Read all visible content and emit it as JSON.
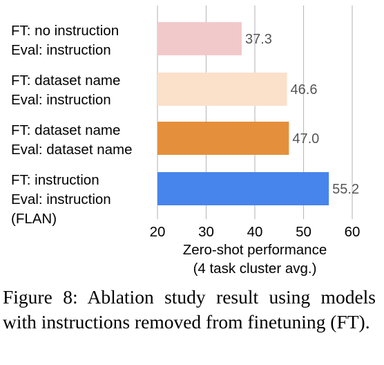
{
  "chart_data": {
    "type": "bar",
    "orientation": "horizontal",
    "categories": [
      [
        "FT: no instruction",
        "Eval: instruction"
      ],
      [
        "FT: dataset name",
        "Eval: instruction"
      ],
      [
        "FT: dataset name",
        "Eval: dataset name"
      ],
      [
        "FT: instruction",
        "Eval: instruction",
        "(FLAN)"
      ]
    ],
    "values": [
      37.3,
      46.6,
      47.0,
      55.2
    ],
    "value_labels": [
      "37.3",
      "46.6",
      "47.0",
      "55.2"
    ],
    "colors": [
      "#f2c9cb",
      "#fbe0ca",
      "#e48f3c",
      "#4784ec"
    ],
    "xlabel": [
      "Zero-shot performance",
      "(4 task cluster avg.)"
    ],
    "xlim": [
      20,
      60
    ],
    "xticks": [
      20,
      30,
      40,
      50,
      60
    ],
    "grid": "vertical"
  },
  "caption": "Figure 8: Ablation study result using models with instructions removed from finetuning (FT)."
}
